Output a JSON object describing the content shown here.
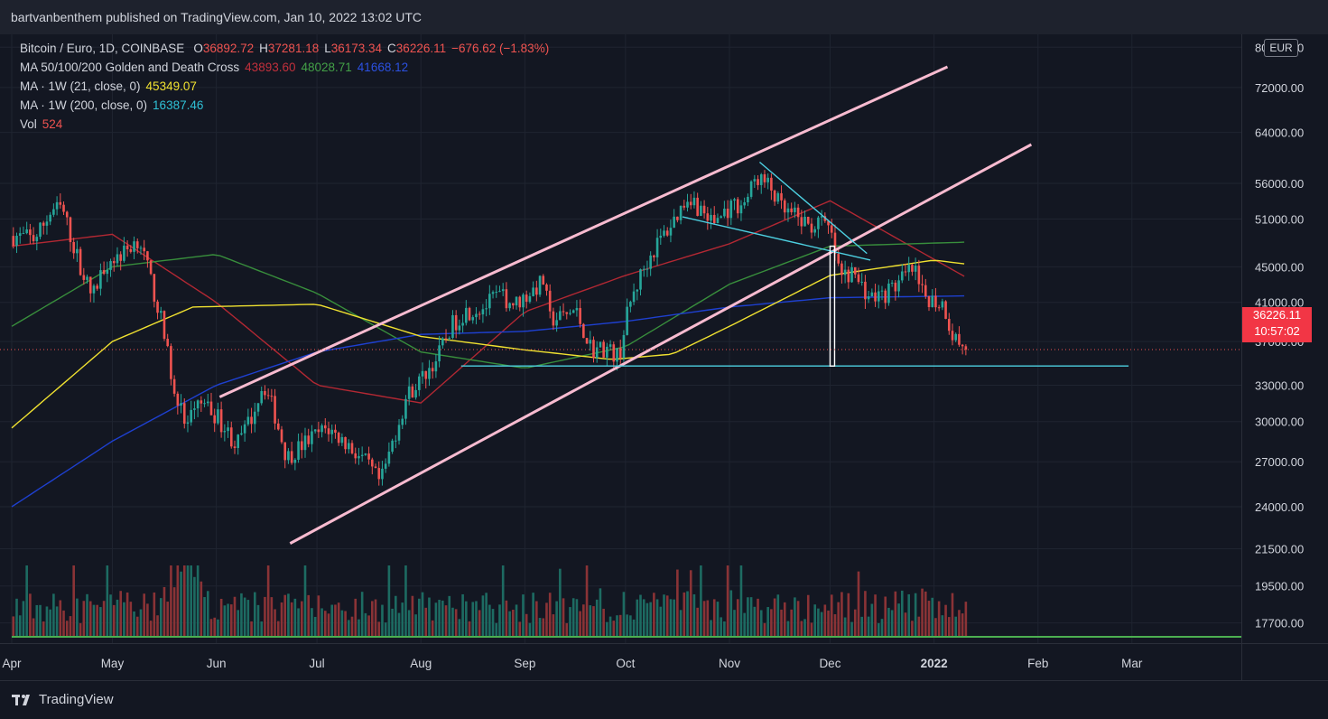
{
  "header": {
    "publisher": "bartvanbenthem published on TradingView.com, Jan 10, 2022 13:02 UTC"
  },
  "symbol_line": {
    "symbol": "Bitcoin / Euro, 1D, COINBASE",
    "open_label": "O",
    "open": "36892.72",
    "high_label": "H",
    "high": "37281.18",
    "low_label": "L",
    "low": "36173.34",
    "close_label": "C",
    "close": "36226.11",
    "change": "−676.62 (−1.83%)"
  },
  "indicators": [
    {
      "label": "MA 50/100/200 Golden and Death Cross",
      "values": [
        "43893.60",
        "48028.71",
        "41668.12"
      ]
    },
    {
      "label": "MA · 1W (21, close, 0)",
      "values": [
        "45349.07"
      ]
    },
    {
      "label": "MA · 1W (200, close, 0)",
      "values": [
        "16387.46"
      ]
    },
    {
      "label": "Vol",
      "values": [
        "524"
      ]
    }
  ],
  "currency_badge": "EUR",
  "last_price": {
    "price": "36226.11",
    "countdown": "10:57:02"
  },
  "footer": {
    "brand": "TradingView"
  },
  "colors": {
    "up": "#26a69a",
    "down": "#ef5350",
    "ma50": "#b22833",
    "ma100": "#388e3c",
    "ma200": "#1e40d0",
    "ma1w21": "#f0e130",
    "ma1w200": "#2fc1d6",
    "channel": "#f8bbd0",
    "trendline": "#4dd0e1",
    "baseline": "#4caf50",
    "price_tag": "#f23645"
  },
  "chart_data": {
    "type": "candlestick",
    "scale": "log",
    "y_ticks": [
      80000,
      72000,
      64000,
      56000,
      51000,
      45000,
      41000,
      37000,
      33000,
      30000,
      27000,
      24000,
      21500,
      19500,
      17700
    ],
    "y_tick_labels": [
      "80000.00",
      "72000.00",
      "64000.00",
      "56000.00",
      "51000.00",
      "45000.00",
      "41000.00",
      "37000.00",
      "33000.00",
      "30000.00",
      "27000.00",
      "24000.00",
      "21500.00",
      "19500.00",
      "17700.00"
    ],
    "x_ticks": [
      {
        "date": "2021-04-01",
        "label": "Apr"
      },
      {
        "date": "2021-05-01",
        "label": "May"
      },
      {
        "date": "2021-06-01",
        "label": "Jun"
      },
      {
        "date": "2021-07-01",
        "label": "Jul"
      },
      {
        "date": "2021-08-01",
        "label": "Aug"
      },
      {
        "date": "2021-09-01",
        "label": "Sep"
      },
      {
        "date": "2021-10-01",
        "label": "Oct"
      },
      {
        "date": "2021-11-01",
        "label": "Nov"
      },
      {
        "date": "2021-12-01",
        "label": "Dec"
      },
      {
        "date": "2022-01-01",
        "label": "2022"
      },
      {
        "date": "2022-02-01",
        "label": "Feb"
      },
      {
        "date": "2022-03-01",
        "label": "Mar"
      }
    ],
    "date_range": [
      "2021-04-01",
      "2022-01-10"
    ],
    "price_path": [
      [
        "2021-04-01",
        48800
      ],
      [
        "2021-04-08",
        48500
      ],
      [
        "2021-04-13",
        52200
      ],
      [
        "2021-04-16",
        52500
      ],
      [
        "2021-04-20",
        46800
      ],
      [
        "2021-04-25",
        41500
      ],
      [
        "2021-04-29",
        45600
      ],
      [
        "2021-05-04",
        46500
      ],
      [
        "2021-05-09",
        48600
      ],
      [
        "2021-05-12",
        44000
      ],
      [
        "2021-05-15",
        40000
      ],
      [
        "2021-05-19",
        33500
      ],
      [
        "2021-05-23",
        29500
      ],
      [
        "2021-05-27",
        31500
      ],
      [
        "2021-06-01",
        30500
      ],
      [
        "2021-06-07",
        28200
      ],
      [
        "2021-06-11",
        30000
      ],
      [
        "2021-06-15",
        33200
      ],
      [
        "2021-06-18",
        31000
      ],
      [
        "2021-06-22",
        27300
      ],
      [
        "2021-06-28",
        28500
      ],
      [
        "2021-07-04",
        29500
      ],
      [
        "2021-07-10",
        28300
      ],
      [
        "2021-07-16",
        26800
      ],
      [
        "2021-07-20",
        25500
      ],
      [
        "2021-07-24",
        28800
      ],
      [
        "2021-07-28",
        32200
      ],
      [
        "2021-08-01",
        33500
      ],
      [
        "2021-08-06",
        35500
      ],
      [
        "2021-08-10",
        38500
      ],
      [
        "2021-08-14",
        40000
      ],
      [
        "2021-08-20",
        40500
      ],
      [
        "2021-08-24",
        41800
      ],
      [
        "2021-08-29",
        40800
      ],
      [
        "2021-09-04",
        42500
      ],
      [
        "2021-09-07",
        43500
      ],
      [
        "2021-09-08",
        39200
      ],
      [
        "2021-09-12",
        39400
      ],
      [
        "2021-09-16",
        40200
      ],
      [
        "2021-09-21",
        36200
      ],
      [
        "2021-09-25",
        36400
      ],
      [
        "2021-09-29",
        35500
      ],
      [
        "2021-10-02",
        40500
      ],
      [
        "2021-10-06",
        44500
      ],
      [
        "2021-10-10",
        47500
      ],
      [
        "2021-10-15",
        50500
      ],
      [
        "2021-10-20",
        54500
      ],
      [
        "2021-10-22",
        53000
      ],
      [
        "2021-10-27",
        50500
      ],
      [
        "2021-11-01",
        52500
      ],
      [
        "2021-11-06",
        53500
      ],
      [
        "2021-11-09",
        57000
      ],
      [
        "2021-11-13",
        55500
      ],
      [
        "2021-11-17",
        52000
      ],
      [
        "2021-11-21",
        51200
      ],
      [
        "2021-11-25",
        50000
      ],
      [
        "2021-11-28",
        50500
      ],
      [
        "2021-12-01",
        49500
      ],
      [
        "2021-12-04",
        43800
      ],
      [
        "2021-12-08",
        44200
      ],
      [
        "2021-12-13",
        41500
      ],
      [
        "2021-12-17",
        41800
      ],
      [
        "2021-12-21",
        43000
      ],
      [
        "2021-12-26",
        44800
      ],
      [
        "2021-12-28",
        42000
      ],
      [
        "2022-01-01",
        41200
      ],
      [
        "2022-01-04",
        40800
      ],
      [
        "2022-01-06",
        38000
      ],
      [
        "2022-01-10",
        36226
      ]
    ],
    "moving_averages": [
      {
        "name": "MA50",
        "color": "#b22833",
        "points": [
          [
            "2021-04-01",
            47500
          ],
          [
            "2021-05-01",
            49000
          ],
          [
            "2021-06-01",
            41000
          ],
          [
            "2021-07-01",
            33000
          ],
          [
            "2021-08-01",
            31500
          ],
          [
            "2021-09-01",
            40000
          ],
          [
            "2021-10-01",
            44000
          ],
          [
            "2021-11-01",
            47800
          ],
          [
            "2021-12-01",
            53500
          ],
          [
            "2022-01-10",
            43900
          ]
        ]
      },
      {
        "name": "MA100",
        "color": "#388e3c",
        "points": [
          [
            "2021-04-01",
            38500
          ],
          [
            "2021-05-01",
            45000
          ],
          [
            "2021-06-01",
            46500
          ],
          [
            "2021-07-01",
            42000
          ],
          [
            "2021-08-01",
            36000
          ],
          [
            "2021-09-01",
            34500
          ],
          [
            "2021-10-01",
            36500
          ],
          [
            "2021-11-01",
            43000
          ],
          [
            "2021-12-01",
            47500
          ],
          [
            "2022-01-10",
            48000
          ]
        ]
      },
      {
        "name": "MA200",
        "color": "#1e40d0",
        "points": [
          [
            "2021-04-01",
            24000
          ],
          [
            "2021-05-01",
            28500
          ],
          [
            "2021-06-01",
            33000
          ],
          [
            "2021-07-01",
            36000
          ],
          [
            "2021-08-01",
            37700
          ],
          [
            "2021-09-01",
            38000
          ],
          [
            "2021-10-01",
            39000
          ],
          [
            "2021-11-01",
            40500
          ],
          [
            "2021-12-01",
            41500
          ],
          [
            "2022-01-10",
            41700
          ]
        ]
      },
      {
        "name": "MA 1W 21",
        "color": "#f0e130",
        "points": [
          [
            "2021-04-01",
            29500
          ],
          [
            "2021-05-01",
            37000
          ],
          [
            "2021-05-25",
            40500
          ],
          [
            "2021-07-01",
            40800
          ],
          [
            "2021-08-01",
            37500
          ],
          [
            "2021-09-01",
            36200
          ],
          [
            "2021-09-27",
            35300
          ],
          [
            "2021-10-15",
            35800
          ],
          [
            "2021-11-01",
            38500
          ],
          [
            "2021-12-01",
            44000
          ],
          [
            "2022-01-01",
            45800
          ],
          [
            "2022-01-10",
            45350
          ]
        ]
      }
    ],
    "volume_max": 2500
  }
}
